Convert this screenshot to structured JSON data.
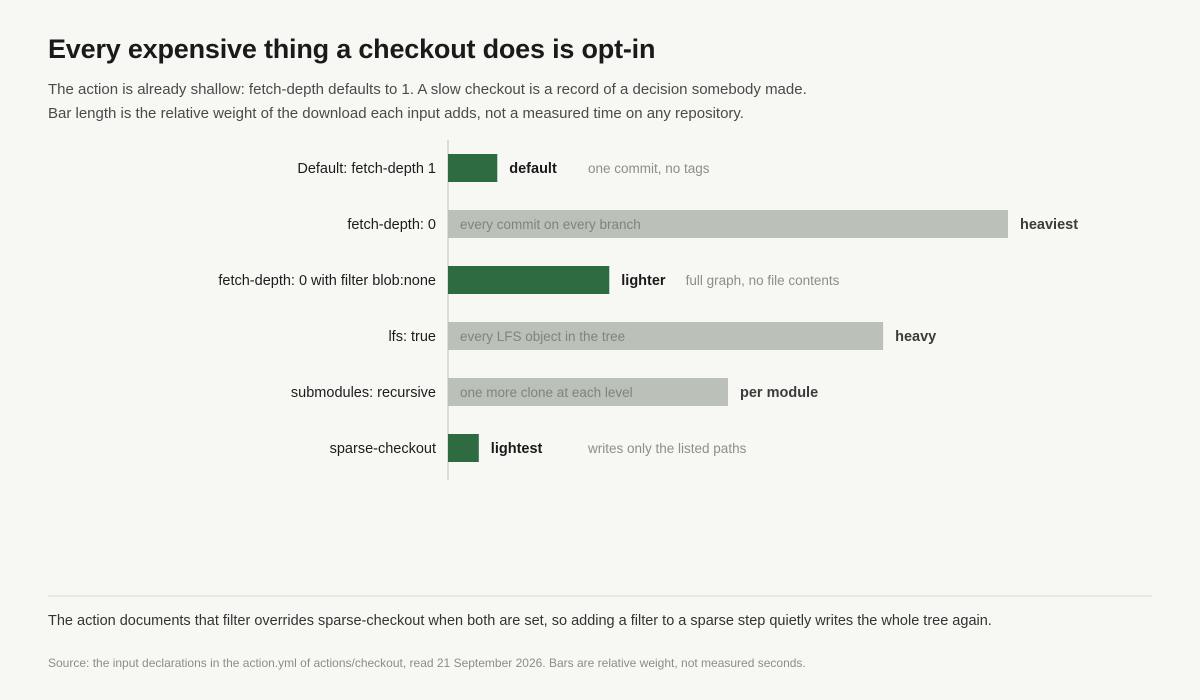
{
  "title": "Every expensive thing a checkout does is opt-in",
  "subtitle_lines": [
    "The action is already shallow: fetch-depth defaults to 1. A slow checkout is a record of a decision somebody made.",
    "Bar length is the relative weight of the download each input adds, not a measured time on any repository."
  ],
  "colors": {
    "cheap": "#2e6b40",
    "costly": "#bbc0b8",
    "label": "#1c1c1c",
    "tag_cheap": "#1a1a1a",
    "tag_costly": "#3c3c3c",
    "note": "#8d8d8a",
    "note_inside": "#7f847d",
    "axis": "#dcdcd6"
  },
  "chart_data": {
    "type": "bar",
    "orientation": "horizontal",
    "title": "",
    "xlabel": "",
    "ylabel": "",
    "xlim": [
      0,
      100
    ],
    "grid": false,
    "legend": "none",
    "categories": [
      "Default: fetch-depth 1",
      "fetch-depth: 0",
      "fetch-depth: 0 with filter blob:none",
      "lfs: true",
      "submodules: recursive",
      "sparse-checkout"
    ],
    "values": [
      8.8,
      100,
      28.8,
      77.7,
      50,
      5.5
    ],
    "tags": [
      "default",
      "heaviest",
      "lighter",
      "heavy",
      "per module",
      "lightest"
    ],
    "notes": [
      "one commit, no tags",
      "every commit on every branch",
      "full graph, no file contents",
      "every LFS object in the tree",
      "one more clone at each level",
      "writes only the listed paths"
    ],
    "kind": [
      "cheap",
      "costly",
      "cheap",
      "costly",
      "costly",
      "cheap"
    ]
  },
  "footnote": "The action documents that filter overrides sparse-checkout when both are set, so adding a filter to a sparse step quietly writes the whole tree again.",
  "source": "Source: the input declarations in the action.yml of actions/checkout, read 21 September 2026. Bars are relative weight, not measured seconds."
}
